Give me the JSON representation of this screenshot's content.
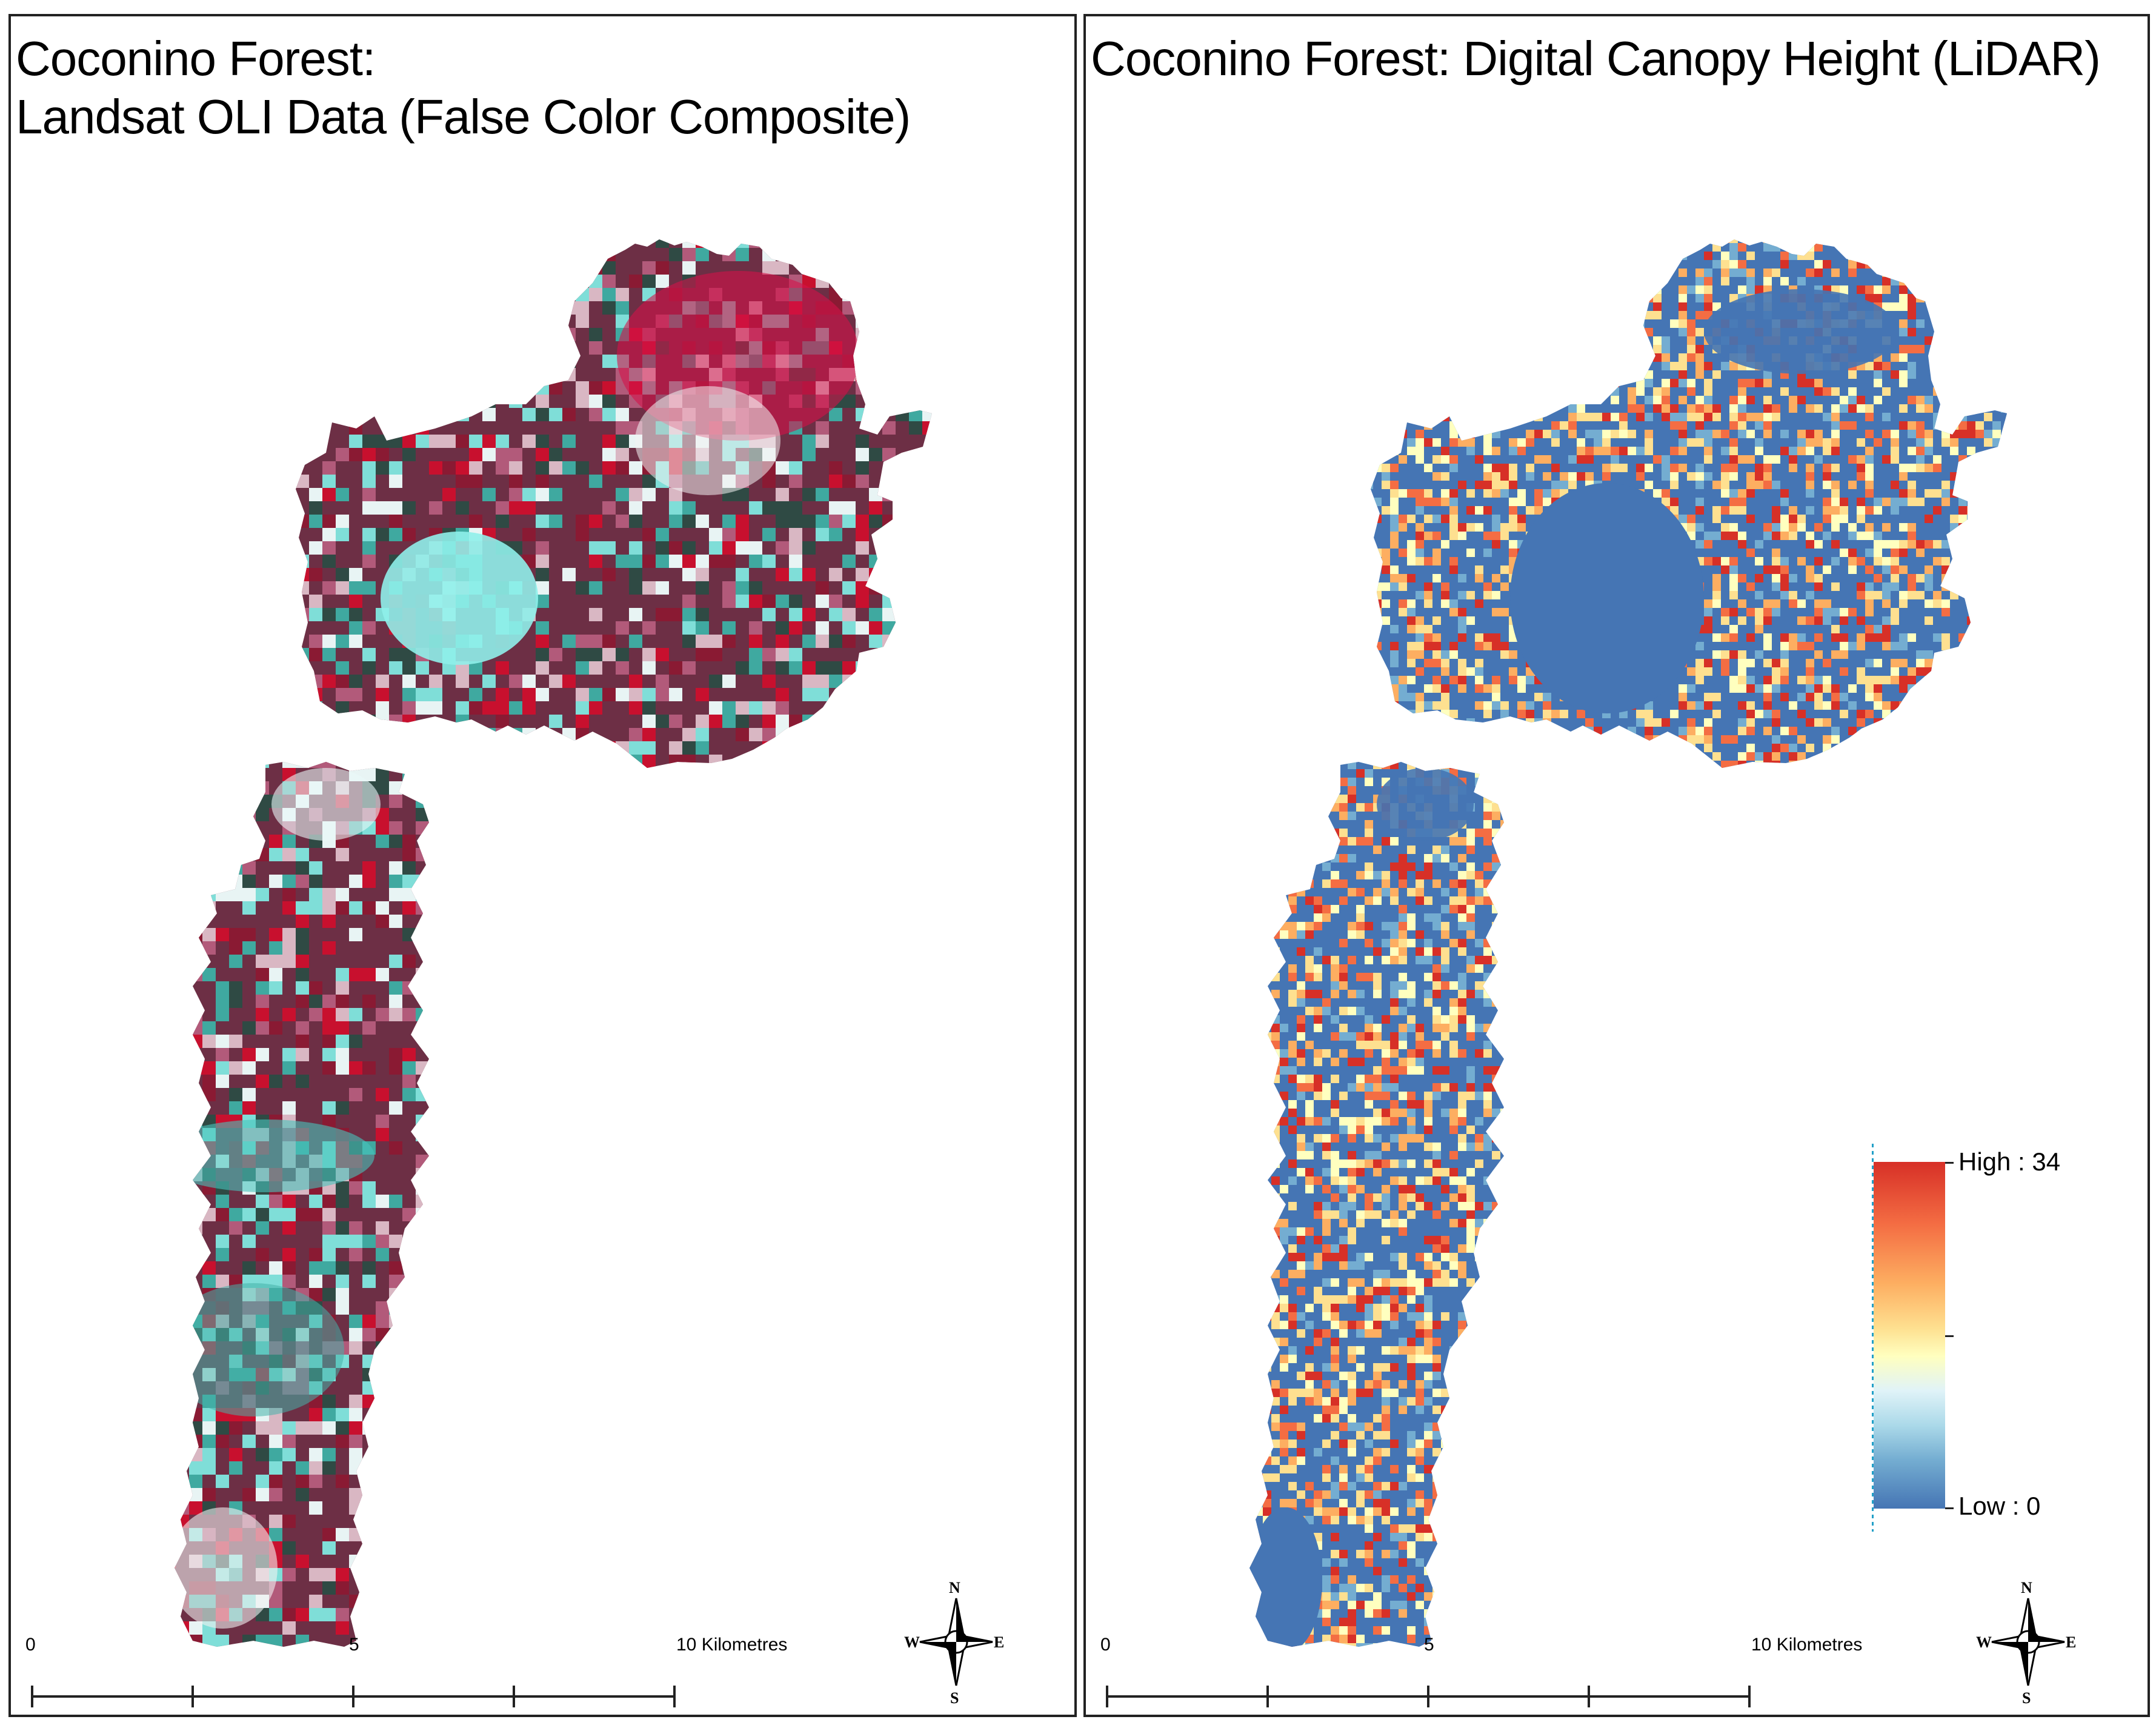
{
  "left_map": {
    "title_line1": "Coconino Forest:",
    "title_line2": "Landsat OLI Data (False Color Composite)",
    "palette": [
      "#c8102e",
      "#8a1a33",
      "#3fa9a0",
      "#7fded8",
      "#e8f4f4",
      "#2f4a44",
      "#b25a7a",
      "#d9b7c3"
    ]
  },
  "right_map": {
    "title": "Coconino Forest: Digital Canopy Height (LiDAR)",
    "base_color": "#4575b4",
    "palette": [
      "#4575b4",
      "#74add1",
      "#fee090",
      "#fdae61",
      "#f46d43",
      "#d73027",
      "#ffffbf"
    ]
  },
  "legend": {
    "high_label": "High : 34",
    "low_label": "Low : 0",
    "high_value": 34,
    "low_value": 0
  },
  "scale_bar": {
    "label_0": "0",
    "label_5": "5",
    "label_10": "10 Kilometres"
  },
  "compass": {
    "north": "N",
    "south": "S",
    "east": "E",
    "west": "W"
  }
}
